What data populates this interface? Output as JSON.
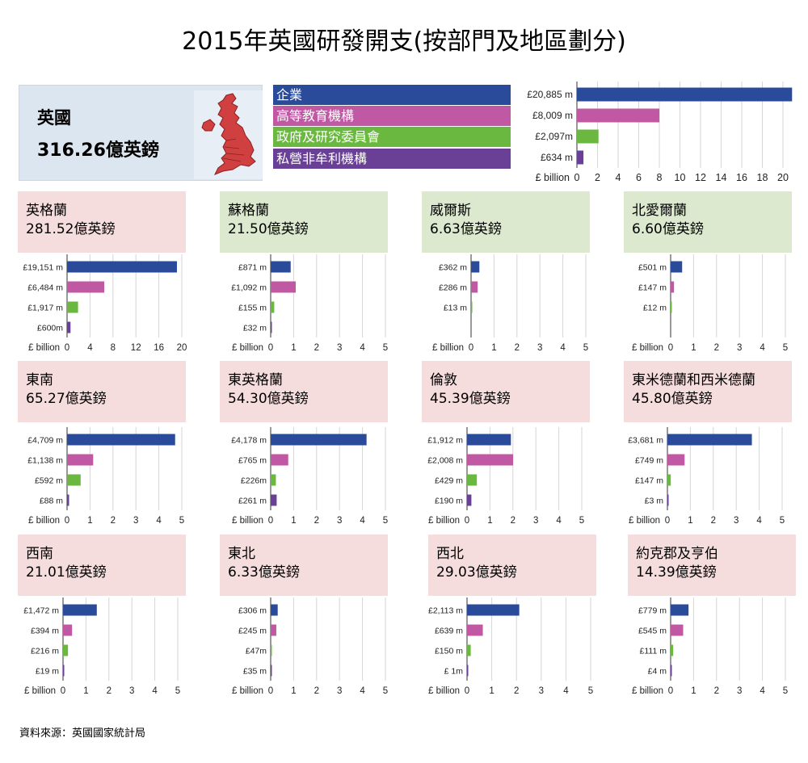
{
  "title": "2015年英國研發開支(按部門及地區劃分)",
  "colors": {
    "business": "#2a4a9a",
    "higher_education": "#c058a4",
    "government": "#6ab840",
    "private_nonprofit": "#6a3f96"
  },
  "uk": {
    "name": "英國",
    "total": "316.26億英鎊",
    "legend": [
      "企業",
      "高等教育機構",
      "政府及研究委員會",
      "私營非牟利機構"
    ]
  },
  "source": "資料來源：英國國家統計局",
  "chart_data": [
    {
      "type": "bar",
      "region": "英國",
      "axis_unit": "£ billion",
      "categories": [
        "企業",
        "高等教育機構",
        "政府及研究委員會",
        "私營非牟利機構"
      ],
      "value_labels": [
        "£20,885 m",
        "£8,009 m",
        "£2,097m",
        "£634 m"
      ],
      "values": [
        20.885,
        8.009,
        2.097,
        0.634
      ],
      "xlim": [
        0,
        20
      ],
      "ticks": [
        0,
        2,
        4,
        6,
        8,
        10,
        12,
        14,
        16,
        18,
        20
      ]
    },
    {
      "type": "bar",
      "region": "英格蘭",
      "total": "281.52億英鎊",
      "axis_unit": "£ billion",
      "value_labels": [
        "£19,151 m",
        "£6,484 m",
        "£1,917 m",
        "£600m"
      ],
      "values": [
        19.151,
        6.484,
        1.917,
        0.6
      ],
      "xlim": [
        0,
        20
      ],
      "ticks": [
        0,
        4,
        8,
        12,
        16,
        20
      ]
    },
    {
      "type": "bar",
      "region": "蘇格蘭",
      "total": "21.50億英鎊",
      "axis_unit": "£ billion",
      "value_labels": [
        "£871 m",
        "£1,092 m",
        "£155 m",
        "£32 m"
      ],
      "values": [
        0.871,
        1.092,
        0.155,
        0.032
      ],
      "xlim": [
        0,
        5
      ],
      "ticks": [
        0,
        1,
        2,
        3,
        4,
        5
      ]
    },
    {
      "type": "bar",
      "region": "威爾斯",
      "total": "6.63億英鎊",
      "axis_unit": "£ billion",
      "value_labels": [
        "£362 m",
        "£286 m",
        "£13 m"
      ],
      "values": [
        0.362,
        0.286,
        0.013
      ],
      "xlim": [
        0,
        5
      ],
      "ticks": [
        0,
        1,
        2,
        3,
        4,
        5
      ]
    },
    {
      "type": "bar",
      "region": "北愛爾蘭",
      "total": "6.60億英鎊",
      "axis_unit": "£ billion",
      "value_labels": [
        "£501 m",
        "£147 m",
        "£12 m"
      ],
      "values": [
        0.501,
        0.147,
        0.012
      ],
      "xlim": [
        0,
        5
      ],
      "ticks": [
        0,
        1,
        2,
        3,
        4,
        5
      ]
    },
    {
      "type": "bar",
      "region": "東南",
      "total": "65.27億英鎊",
      "axis_unit": "£ billion",
      "value_labels": [
        "£4,709 m",
        "£1,138 m",
        "£592 m",
        "£88 m"
      ],
      "values": [
        4.709,
        1.138,
        0.592,
        0.088
      ],
      "xlim": [
        0,
        5
      ],
      "ticks": [
        0,
        1,
        2,
        3,
        4,
        5
      ]
    },
    {
      "type": "bar",
      "region": "東英格蘭",
      "total": "54.30億英鎊",
      "axis_unit": "£ billion",
      "value_labels": [
        "£4,178 m",
        "£765 m",
        "£226m",
        "£261 m"
      ],
      "values": [
        4.178,
        0.765,
        0.226,
        0.261
      ],
      "xlim": [
        0,
        5
      ],
      "ticks": [
        0,
        1,
        2,
        3,
        4,
        5
      ]
    },
    {
      "type": "bar",
      "region": "倫敦",
      "total": "45.39億英鎊",
      "axis_unit": "£ billion",
      "value_labels": [
        "£1,912 m",
        "£2,008 m",
        "£429 m",
        "£190 m"
      ],
      "values": [
        1.912,
        2.008,
        0.429,
        0.19
      ],
      "xlim": [
        0,
        5
      ],
      "ticks": [
        0,
        1,
        2,
        3,
        4,
        5
      ]
    },
    {
      "type": "bar",
      "region": "東米德蘭和西米德蘭",
      "total": "45.80億英鎊",
      "axis_unit": "£ billion",
      "value_labels": [
        "£3,681 m",
        "£749 m",
        "£147 m",
        "£3 m"
      ],
      "values": [
        3.681,
        0.749,
        0.147,
        0.003
      ],
      "xlim": [
        0,
        5
      ],
      "ticks": [
        0,
        1,
        2,
        3,
        4,
        5
      ]
    },
    {
      "type": "bar",
      "region": "西南",
      "total": "21.01億英鎊",
      "axis_unit": "£ billion",
      "value_labels": [
        "£1,472 m",
        "£394 m",
        "£216 m",
        "£19 m"
      ],
      "values": [
        1.472,
        0.394,
        0.216,
        0.019
      ],
      "xlim": [
        0,
        5
      ],
      "ticks": [
        0,
        1,
        2,
        3,
        4,
        5
      ]
    },
    {
      "type": "bar",
      "region": "東北",
      "total": "6.33億英鎊",
      "axis_unit": "£ billion",
      "value_labels": [
        "£306 m",
        "£245 m",
        "£47m",
        "£35 m"
      ],
      "values": [
        0.306,
        0.245,
        0.047,
        0.035
      ],
      "xlim": [
        0,
        5
      ],
      "ticks": [
        0,
        1,
        2,
        3,
        4,
        5
      ]
    },
    {
      "type": "bar",
      "region": "西北",
      "total": "29.03億英鎊",
      "axis_unit": "£ billion",
      "value_labels": [
        "£2,113 m",
        "£639 m",
        "£150 m",
        "£ 1m"
      ],
      "values": [
        2.113,
        0.639,
        0.15,
        0.001
      ],
      "xlim": [
        0,
        5
      ],
      "ticks": [
        0,
        1,
        2,
        3,
        4,
        5
      ]
    },
    {
      "type": "bar",
      "region": "約克郡及亨伯",
      "total": "14.39億英鎊",
      "axis_unit": "£ billion",
      "value_labels": [
        "£779 m",
        "£545 m",
        "£111 m",
        "£4 m"
      ],
      "values": [
        0.779,
        0.545,
        0.111,
        0.004
      ],
      "xlim": [
        0,
        5
      ],
      "ticks": [
        0,
        1,
        2,
        3,
        4,
        5
      ]
    }
  ]
}
